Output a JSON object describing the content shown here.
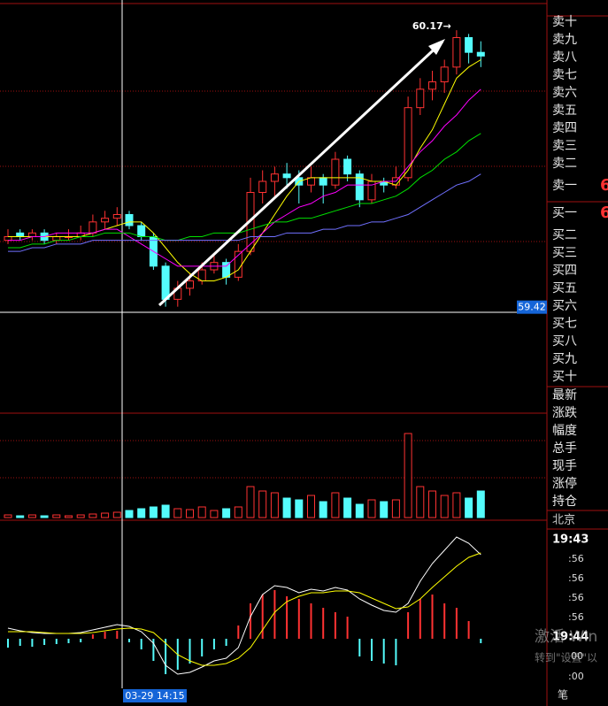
{
  "price_chart": {
    "type": "candlestick",
    "candles": [
      [
        59.6,
        59.63,
        59.59,
        59.61
      ],
      [
        59.62,
        59.63,
        59.6,
        59.61
      ],
      [
        59.61,
        59.63,
        59.6,
        59.62
      ],
      [
        59.62,
        59.63,
        59.59,
        59.6
      ],
      [
        59.6,
        59.62,
        59.59,
        59.61
      ],
      [
        59.61,
        59.63,
        59.6,
        59.61
      ],
      [
        59.61,
        59.64,
        59.6,
        59.62
      ],
      [
        59.62,
        59.67,
        59.61,
        59.65
      ],
      [
        59.65,
        59.68,
        59.63,
        59.66
      ],
      [
        59.66,
        59.69,
        59.64,
        59.67
      ],
      [
        59.67,
        59.68,
        59.63,
        59.64
      ],
      [
        59.64,
        59.65,
        59.6,
        59.61
      ],
      [
        59.61,
        59.62,
        59.52,
        59.53
      ],
      [
        59.53,
        59.54,
        59.42,
        59.44
      ],
      [
        59.44,
        59.49,
        59.42,
        59.47
      ],
      [
        59.47,
        59.51,
        59.45,
        59.49
      ],
      [
        59.49,
        59.54,
        59.48,
        59.52
      ],
      [
        59.52,
        59.56,
        59.51,
        59.54
      ],
      [
        59.54,
        59.55,
        59.48,
        59.5
      ],
      [
        59.5,
        59.59,
        59.49,
        59.57
      ],
      [
        59.57,
        59.77,
        59.56,
        59.73
      ],
      [
        59.73,
        59.79,
        59.7,
        59.76
      ],
      [
        59.76,
        59.8,
        59.72,
        59.78
      ],
      [
        59.78,
        59.81,
        59.74,
        59.77
      ],
      [
        59.77,
        59.79,
        59.7,
        59.75
      ],
      [
        59.75,
        59.8,
        59.73,
        59.77
      ],
      [
        59.77,
        59.78,
        59.7,
        59.75
      ],
      [
        59.75,
        59.84,
        59.74,
        59.82
      ],
      [
        59.82,
        59.83,
        59.76,
        59.78
      ],
      [
        59.78,
        59.79,
        59.69,
        59.71
      ],
      [
        59.71,
        59.78,
        59.7,
        59.76
      ],
      [
        59.76,
        59.77,
        59.73,
        59.75
      ],
      [
        59.75,
        59.8,
        59.74,
        59.77
      ],
      [
        59.77,
        59.99,
        59.76,
        59.96
      ],
      [
        59.96,
        60.04,
        59.94,
        60.01
      ],
      [
        60.01,
        60.06,
        59.98,
        60.03
      ],
      [
        60.03,
        60.09,
        60.0,
        60.07
      ],
      [
        60.07,
        60.17,
        60.05,
        60.15
      ],
      [
        60.15,
        60.16,
        60.08,
        60.11
      ],
      [
        60.11,
        60.14,
        60.07,
        60.1
      ]
    ],
    "up_color": "#ff3232",
    "down_color": "#54fcfc",
    "ylim": [
      59.4,
      60.24
    ],
    "ma": [
      {
        "color": "#ffff00",
        "values": [
          59.61,
          59.61,
          59.61,
          59.61,
          59.61,
          59.61,
          59.61,
          59.62,
          59.63,
          59.64,
          59.65,
          59.65,
          59.62,
          59.58,
          59.54,
          59.51,
          59.49,
          59.49,
          59.5,
          59.52,
          59.57,
          59.62,
          59.67,
          59.72,
          59.76,
          59.77,
          59.77,
          59.77,
          59.77,
          59.77,
          59.76,
          59.76,
          59.75,
          59.79,
          59.85,
          59.9,
          59.97,
          60.04,
          60.07,
          60.09
        ]
      },
      {
        "color": "#ff00ff",
        "values": [
          59.6,
          59.6,
          59.61,
          59.61,
          59.62,
          59.62,
          59.62,
          59.62,
          59.63,
          59.63,
          59.61,
          59.59,
          59.57,
          59.55,
          59.53,
          59.53,
          59.53,
          59.53,
          59.53,
          59.56,
          59.59,
          59.62,
          59.65,
          59.67,
          59.69,
          59.7,
          59.72,
          59.73,
          59.75,
          59.75,
          59.75,
          59.76,
          59.76,
          59.8,
          59.84,
          59.87,
          59.91,
          59.94,
          59.98,
          60.01
        ]
      },
      {
        "color": "#00e000",
        "values": [
          59.58,
          59.58,
          59.59,
          59.59,
          59.6,
          59.6,
          59.61,
          59.61,
          59.62,
          59.62,
          59.62,
          59.61,
          59.61,
          59.6,
          59.6,
          59.61,
          59.61,
          59.62,
          59.62,
          59.62,
          59.63,
          59.64,
          59.65,
          59.65,
          59.66,
          59.66,
          59.67,
          59.68,
          59.69,
          59.7,
          59.7,
          59.71,
          59.72,
          59.74,
          59.77,
          59.79,
          59.82,
          59.84,
          59.87,
          59.89
        ]
      },
      {
        "color": "#7070ff",
        "values": [
          59.57,
          59.57,
          59.58,
          59.58,
          59.59,
          59.59,
          59.59,
          59.6,
          59.6,
          59.6,
          59.6,
          59.6,
          59.6,
          59.6,
          59.6,
          59.6,
          59.6,
          59.6,
          59.6,
          59.6,
          59.61,
          59.61,
          59.61,
          59.62,
          59.62,
          59.62,
          59.63,
          59.63,
          59.64,
          59.64,
          59.65,
          59.65,
          59.66,
          59.67,
          59.69,
          59.71,
          59.73,
          59.75,
          59.76,
          59.78
        ]
      }
    ],
    "high_label": "60.17→",
    "cursor_price": 59.42,
    "cursor_time": "03-29 14:15"
  },
  "volume_chart": {
    "type": "bar",
    "values": [
      3,
      2,
      3,
      2,
      3,
      2,
      3,
      4,
      5,
      6,
      8,
      10,
      12,
      14,
      10,
      9,
      12,
      8,
      10,
      12,
      35,
      30,
      28,
      22,
      20,
      25,
      18,
      28,
      22,
      15,
      20,
      18,
      20,
      95,
      35,
      30,
      25,
      28,
      22,
      30
    ],
    "ylim": [
      0,
      115
    ]
  },
  "macd_chart": {
    "type": "bar",
    "values": [
      -10,
      -8,
      -9,
      -7,
      -6,
      -5,
      -4,
      5,
      8,
      9,
      -4,
      -12,
      -25,
      -40,
      -35,
      -28,
      -20,
      -12,
      -8,
      15,
      40,
      50,
      55,
      48,
      45,
      40,
      35,
      30,
      25,
      -20,
      -25,
      -28,
      -30,
      30,
      45,
      50,
      40,
      35,
      20,
      -5
    ],
    "dif": [
      12,
      9,
      7,
      6,
      6,
      6,
      7,
      10,
      13,
      16,
      14,
      8,
      -5,
      -30,
      -40,
      -38,
      -32,
      -25,
      -22,
      -10,
      25,
      50,
      60,
      58,
      52,
      56,
      54,
      58,
      55,
      45,
      38,
      32,
      30,
      40,
      65,
      85,
      100,
      115,
      108,
      95
    ],
    "dea": [
      8,
      8,
      8,
      7,
      6,
      6,
      6,
      7,
      9,
      11,
      12,
      11,
      7,
      -5,
      -18,
      -25,
      -30,
      -30,
      -28,
      -22,
      -10,
      10,
      30,
      42,
      48,
      52,
      52,
      54,
      54,
      52,
      46,
      40,
      34,
      36,
      45,
      58,
      70,
      82,
      92,
      97
    ],
    "ylim": [
      -53,
      132
    ]
  },
  "order_book": {
    "sell": [
      "卖十",
      "卖九",
      "卖八",
      "卖七",
      "卖六",
      "卖五",
      "卖四",
      "卖三",
      "卖二"
    ],
    "ask1": "卖一",
    "ask1_price": "6",
    "bid1": "买一",
    "bid1_price": "6",
    "buy": [
      "买二",
      "买三",
      "买四",
      "买五",
      "买六",
      "买七",
      "买八",
      "买九",
      "买十"
    ]
  },
  "stats": [
    "最新",
    "涨跌",
    "幅度",
    "总手",
    "现手",
    "涨停",
    "持仓"
  ],
  "ticks_panel": {
    "exchange": "北京",
    "time": "19:43",
    "rows": [
      ":56",
      ":56",
      ":56",
      ":56"
    ],
    "time2": "19:44",
    "row2": "00",
    "row3": ":00",
    "tab": "笔"
  },
  "watermark": {
    "line1": "激活 Win",
    "line2": "转到\"设置\"以"
  }
}
